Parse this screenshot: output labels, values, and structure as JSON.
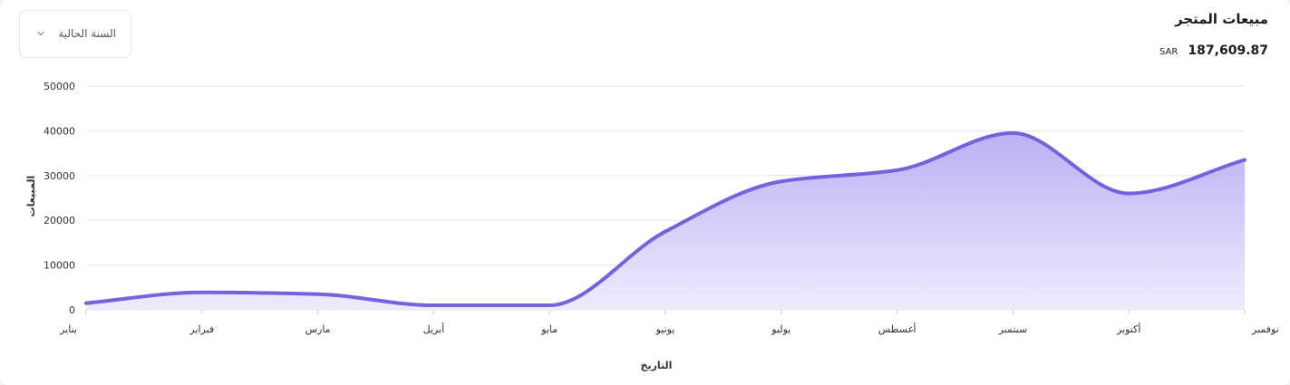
{
  "header": {
    "title": "مبيعات المتجر",
    "total_amount": "187,609.87",
    "currency": "SAR"
  },
  "filter": {
    "selected": "السنة الحالية"
  },
  "colors": {
    "line": "#7462de",
    "fill_top": "#b8acf4",
    "fill_bottom": "#ece8fd",
    "grid": "#e5e5ea"
  },
  "chart_data": {
    "type": "area",
    "categories": [
      "يناير",
      "فبراير",
      "مارس",
      "أبريل",
      "مايو",
      "يونيو",
      "يوليو",
      "أغسطس",
      "سبتمبر",
      "أكتوبر",
      "نوفمبر"
    ],
    "series": [
      {
        "values": [
          1500,
          3900,
          3500,
          1000,
          1000,
          17500,
          28700,
          31200,
          39500,
          26000,
          33500
        ]
      }
    ],
    "xlabel": "التاريخ",
    "ylabel": "المبيعات",
    "ylim": [
      0,
      50000
    ],
    "yticks": [
      0,
      10000,
      20000,
      30000,
      40000,
      50000
    ],
    "grid": true,
    "legend": "none"
  }
}
